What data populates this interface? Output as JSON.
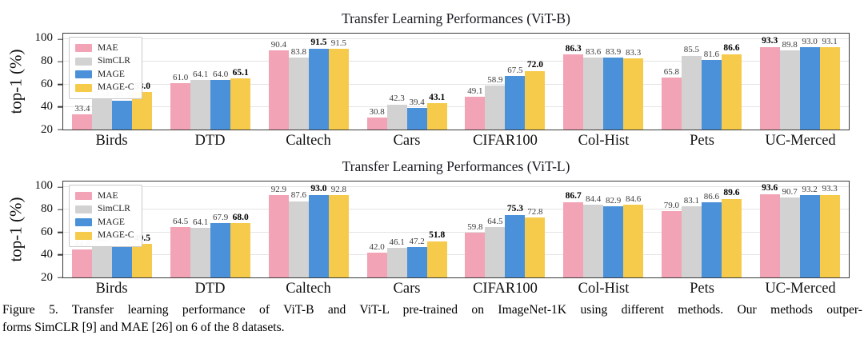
{
  "figure": {
    "caption_line1": "Figure 5. Transfer learning performance of ViT-B and ViT-L pre-trained on ImageNet-1K using different methods. Our methods outper-",
    "caption_line2": "forms SimCLR [9] and MAE [26] on 6 of the 8 datasets."
  },
  "colors": {
    "mae_pink": "#F2A3B5",
    "simclr_gray": "#D2D2D2",
    "mage_blue": "#4A91DA",
    "magec_yellow": "#F6CB4B",
    "gridline": "#E4E4E4",
    "axis_spine": "#3A3A3A"
  },
  "chart_data": [
    {
      "type": "bar",
      "title": "Transfer Learning Performances (ViT-B)",
      "xlabel": "",
      "ylabel": "top-1 (%)",
      "ylim": [
        20,
        105
      ],
      "yticks": [
        20,
        40,
        60,
        80,
        100
      ],
      "grid": true,
      "legend_position": "top-left",
      "categories": [
        "Birds",
        "DTD",
        "Caltech",
        "Cars",
        "CIFAR100",
        "Col-Hist",
        "Pets",
        "UC-Merced"
      ],
      "series": [
        {
          "name": "MAE",
          "color": "#F2A3B5",
          "values": [
            33.4,
            61.0,
            90.4,
            30.8,
            49.1,
            86.3,
            65.8,
            93.3
          ]
        },
        {
          "name": "SimCLR",
          "color": "#D2D2D2",
          "values": [
            47.1,
            64.1,
            83.8,
            42.3,
            58.9,
            83.6,
            85.5,
            89.8
          ]
        },
        {
          "name": "MAGE",
          "color": "#4A91DA",
          "values": [
            45.5,
            64.0,
            91.5,
            39.4,
            67.5,
            83.9,
            81.6,
            93.0
          ]
        },
        {
          "name": "MAGE-C",
          "color": "#F6CB4B",
          "values": [
            53.0,
            65.1,
            91.5,
            43.1,
            72.0,
            83.3,
            86.6,
            93.1
          ]
        }
      ],
      "bold_series_per_category": [
        3,
        3,
        2,
        3,
        3,
        0,
        3,
        0
      ]
    },
    {
      "type": "bar",
      "title": "Transfer Learning Performances (ViT-L)",
      "xlabel": "",
      "ylabel": "top-1 (%)",
      "ylim": [
        20,
        105
      ],
      "yticks": [
        20,
        40,
        60,
        80,
        100
      ],
      "grid": true,
      "legend_position": "top-left",
      "categories": [
        "Birds",
        "DTD",
        "Caltech",
        "Cars",
        "CIFAR100",
        "Col-Hist",
        "Pets",
        "UC-Merced"
      ],
      "series": [
        {
          "name": "MAE",
          "color": "#F2A3B5",
          "values": [
            44.8,
            64.5,
            92.9,
            42.0,
            59.8,
            86.7,
            79.0,
            93.6
          ]
        },
        {
          "name": "SimCLR",
          "color": "#D2D2D2",
          "values": [
            48.8,
            64.1,
            87.6,
            46.1,
            64.5,
            84.4,
            83.1,
            90.7
          ]
        },
        {
          "name": "MAGE",
          "color": "#4A91DA",
          "values": [
            47.6,
            67.9,
            93.0,
            47.2,
            75.3,
            82.9,
            86.6,
            93.2
          ]
        },
        {
          "name": "MAGE-C",
          "color": "#F6CB4B",
          "values": [
            49.5,
            68.0,
            92.8,
            51.8,
            72.8,
            84.6,
            89.6,
            93.3
          ]
        }
      ],
      "bold_series_per_category": [
        3,
        3,
        2,
        3,
        2,
        0,
        3,
        0
      ]
    }
  ]
}
